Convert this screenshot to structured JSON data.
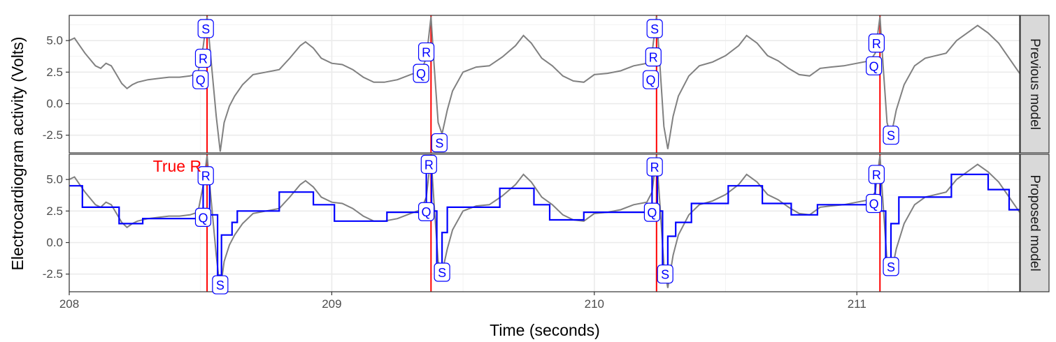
{
  "chart_data": {
    "type": "line",
    "title": "",
    "xlabel": "Time (seconds)",
    "ylabel": "Electrocardiogram activity (Volts)",
    "xlim": [
      208,
      211.62
    ],
    "ylim": [
      -3.9,
      7.0
    ],
    "x_ticks": [
      {
        "value": 208,
        "label": "208"
      },
      {
        "value": 209,
        "label": "209"
      },
      {
        "value": 210,
        "label": "210"
      },
      {
        "value": 211,
        "label": "211"
      }
    ],
    "y_ticks": [
      {
        "value": -2.5,
        "label": "-2.5"
      },
      {
        "value": 0,
        "label": "0.0"
      },
      {
        "value": 2.5,
        "label": "2.5"
      },
      {
        "value": 5,
        "label": "5.0"
      }
    ],
    "grid": true,
    "colors": {
      "signal": "#808080",
      "model": "#0000ff",
      "true_r": "#ff0000",
      "strip": "#d9d9d9",
      "panel_bg": "#ffffff",
      "grid": "#ebebeb"
    },
    "true_r_label": "True R",
    "true_r_times": [
      208.525,
      209.378,
      210.237,
      211.088
    ],
    "signal": [
      [
        208.0,
        5.0
      ],
      [
        208.02,
        5.2
      ],
      [
        208.04,
        4.6
      ],
      [
        208.06,
        4.0
      ],
      [
        208.08,
        3.5
      ],
      [
        208.1,
        3.0
      ],
      [
        208.12,
        2.8
      ],
      [
        208.14,
        3.2
      ],
      [
        208.16,
        3.0
      ],
      [
        208.18,
        2.3
      ],
      [
        208.2,
        1.6
      ],
      [
        208.22,
        1.2
      ],
      [
        208.24,
        1.5
      ],
      [
        208.26,
        1.7
      ],
      [
        208.3,
        1.9
      ],
      [
        208.34,
        2.0
      ],
      [
        208.38,
        2.1
      ],
      [
        208.42,
        2.1
      ],
      [
        208.46,
        2.2
      ],
      [
        208.49,
        2.4
      ],
      [
        208.51,
        4.5
      ],
      [
        208.525,
        6.9
      ],
      [
        208.54,
        3.5
      ],
      [
        208.56,
        -1.0
      ],
      [
        208.575,
        -3.8
      ],
      [
        208.59,
        -1.5
      ],
      [
        208.61,
        -0.2
      ],
      [
        208.63,
        0.6
      ],
      [
        208.66,
        1.5
      ],
      [
        208.7,
        2.3
      ],
      [
        208.75,
        2.5
      ],
      [
        208.8,
        2.7
      ],
      [
        208.84,
        3.6
      ],
      [
        208.88,
        4.6
      ],
      [
        208.9,
        4.9
      ],
      [
        208.93,
        4.4
      ],
      [
        208.96,
        3.6
      ],
      [
        209.0,
        3.2
      ],
      [
        209.04,
        3.1
      ],
      [
        209.08,
        2.7
      ],
      [
        209.12,
        2.1
      ],
      [
        209.16,
        1.7
      ],
      [
        209.2,
        1.7
      ],
      [
        209.25,
        1.9
      ],
      [
        209.3,
        2.3
      ],
      [
        209.34,
        2.6
      ],
      [
        209.36,
        3.6
      ],
      [
        209.378,
        6.9
      ],
      [
        209.39,
        3.0
      ],
      [
        209.405,
        -1.5
      ],
      [
        209.42,
        -2.4
      ],
      [
        209.44,
        -0.5
      ],
      [
        209.46,
        1.0
      ],
      [
        209.5,
        2.5
      ],
      [
        209.55,
        2.9
      ],
      [
        209.6,
        3.0
      ],
      [
        209.65,
        3.7
      ],
      [
        209.7,
        4.6
      ],
      [
        209.73,
        5.4
      ],
      [
        209.76,
        4.8
      ],
      [
        209.8,
        3.6
      ],
      [
        209.84,
        3.0
      ],
      [
        209.88,
        2.2
      ],
      [
        209.92,
        1.8
      ],
      [
        209.96,
        1.7
      ],
      [
        210.0,
        2.3
      ],
      [
        210.05,
        2.4
      ],
      [
        210.1,
        2.6
      ],
      [
        210.15,
        3.0
      ],
      [
        210.2,
        3.2
      ],
      [
        210.22,
        4.0
      ],
      [
        210.237,
        6.9
      ],
      [
        210.25,
        3.0
      ],
      [
        210.265,
        -1.8
      ],
      [
        210.28,
        -3.6
      ],
      [
        210.3,
        -1.0
      ],
      [
        210.32,
        0.6
      ],
      [
        210.36,
        2.2
      ],
      [
        210.4,
        3.0
      ],
      [
        210.45,
        3.3
      ],
      [
        210.5,
        3.8
      ],
      [
        210.55,
        4.6
      ],
      [
        210.58,
        5.4
      ],
      [
        210.62,
        4.8
      ],
      [
        210.66,
        3.8
      ],
      [
        210.7,
        3.4
      ],
      [
        210.74,
        2.8
      ],
      [
        210.78,
        2.3
      ],
      [
        210.82,
        2.2
      ],
      [
        210.86,
        2.8
      ],
      [
        210.9,
        2.9
      ],
      [
        210.95,
        3.0
      ],
      [
        211.0,
        3.2
      ],
      [
        211.05,
        3.4
      ],
      [
        211.07,
        4.0
      ],
      [
        211.088,
        6.9
      ],
      [
        211.1,
        3.0
      ],
      [
        211.115,
        -1.5
      ],
      [
        211.13,
        -2.6
      ],
      [
        211.15,
        -0.5
      ],
      [
        211.18,
        1.5
      ],
      [
        211.22,
        3.0
      ],
      [
        211.26,
        3.6
      ],
      [
        211.3,
        3.8
      ],
      [
        211.34,
        4.0
      ],
      [
        211.38,
        5.0
      ],
      [
        211.42,
        5.6
      ],
      [
        211.46,
        6.2
      ],
      [
        211.5,
        5.6
      ],
      [
        211.54,
        4.8
      ],
      [
        211.58,
        3.6
      ],
      [
        211.6,
        3.0
      ],
      [
        211.62,
        2.4
      ]
    ],
    "panels": [
      {
        "name": "Previous model",
        "marks": [
          {
            "label": "S",
            "x": 208.52,
            "y": 5.95
          },
          {
            "label": "R",
            "x": 208.51,
            "y": 3.6
          },
          {
            "label": "Q",
            "x": 208.5,
            "y": 1.9
          },
          {
            "label": "R",
            "x": 209.36,
            "y": 4.1
          },
          {
            "label": "Q",
            "x": 209.34,
            "y": 2.4
          },
          {
            "label": "S",
            "x": 209.41,
            "y": -3.1
          },
          {
            "label": "S",
            "x": 210.23,
            "y": 5.95
          },
          {
            "label": "R",
            "x": 210.225,
            "y": 3.7
          },
          {
            "label": "Q",
            "x": 210.215,
            "y": 1.9
          },
          {
            "label": "R",
            "x": 211.075,
            "y": 4.8
          },
          {
            "label": "Q",
            "x": 211.065,
            "y": 3.0
          },
          {
            "label": "S",
            "x": 211.13,
            "y": -2.5
          }
        ]
      },
      {
        "name": "Proposed model",
        "segments": [
          [
            208.0,
            208.05,
            4.5
          ],
          [
            208.05,
            208.19,
            2.8
          ],
          [
            208.19,
            208.28,
            1.5
          ],
          [
            208.28,
            208.51,
            1.9
          ],
          [
            208.51,
            208.535,
            5.5
          ],
          [
            208.535,
            208.565,
            2.2
          ],
          [
            208.565,
            208.58,
            -2.6
          ],
          [
            208.58,
            208.62,
            0.6
          ],
          [
            208.62,
            208.64,
            1.6
          ],
          [
            208.64,
            208.8,
            2.5
          ],
          [
            208.8,
            208.93,
            4.0
          ],
          [
            208.93,
            209.01,
            3.0
          ],
          [
            209.01,
            209.13,
            1.7
          ],
          [
            209.13,
            209.21,
            1.7
          ],
          [
            209.21,
            209.36,
            2.4
          ],
          [
            209.36,
            209.38,
            6.0
          ],
          [
            209.38,
            209.4,
            2.5
          ],
          [
            209.4,
            209.42,
            -2.3
          ],
          [
            209.42,
            209.44,
            0.8
          ],
          [
            209.44,
            209.64,
            2.8
          ],
          [
            209.64,
            209.77,
            4.3
          ],
          [
            209.77,
            209.83,
            3.0
          ],
          [
            209.83,
            209.96,
            1.8
          ],
          [
            209.96,
            210.0,
            2.4
          ],
          [
            210.0,
            210.22,
            2.4
          ],
          [
            210.22,
            210.24,
            6.0
          ],
          [
            210.24,
            210.26,
            2.5
          ],
          [
            210.26,
            210.28,
            -2.3
          ],
          [
            210.28,
            210.31,
            0.5
          ],
          [
            210.31,
            210.37,
            1.6
          ],
          [
            210.37,
            210.51,
            3.1
          ],
          [
            210.51,
            210.64,
            4.5
          ],
          [
            210.64,
            210.75,
            3.1
          ],
          [
            210.75,
            210.85,
            2.2
          ],
          [
            210.85,
            211.07,
            3.0
          ],
          [
            211.07,
            211.09,
            6.0
          ],
          [
            211.09,
            211.11,
            2.5
          ],
          [
            211.11,
            211.13,
            -2.0
          ],
          [
            211.13,
            211.16,
            1.5
          ],
          [
            211.16,
            211.36,
            3.6
          ],
          [
            211.36,
            211.5,
            5.4
          ],
          [
            211.5,
            211.58,
            4.2
          ],
          [
            211.58,
            211.62,
            2.6
          ]
        ],
        "marks": [
          {
            "label": "R",
            "x": 208.52,
            "y": 5.3
          },
          {
            "label": "Q",
            "x": 208.51,
            "y": 2.0
          },
          {
            "label": "S",
            "x": 208.575,
            "y": -3.35
          },
          {
            "label": "R",
            "x": 209.37,
            "y": 6.2
          },
          {
            "label": "Q",
            "x": 209.36,
            "y": 2.45
          },
          {
            "label": "S",
            "x": 209.42,
            "y": -2.35
          },
          {
            "label": "R",
            "x": 210.23,
            "y": 6.0
          },
          {
            "label": "Q",
            "x": 210.22,
            "y": 2.4
          },
          {
            "label": "S",
            "x": 210.27,
            "y": -2.5
          },
          {
            "label": "R",
            "x": 211.075,
            "y": 5.4
          },
          {
            "label": "Q",
            "x": 211.065,
            "y": 3.1
          },
          {
            "label": "S",
            "x": 211.13,
            "y": -1.9
          }
        ]
      }
    ]
  }
}
